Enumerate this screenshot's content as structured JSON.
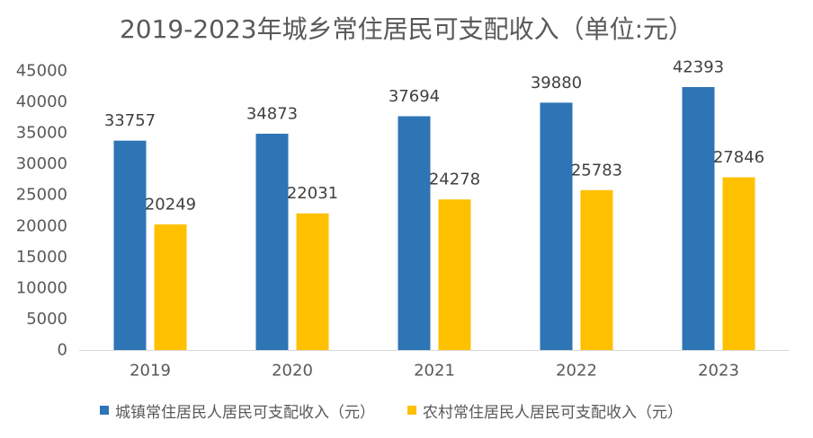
{
  "chart_data": {
    "type": "bar",
    "title": "2019-2023年城乡常住居民可支配收入（单位:元）",
    "categories": [
      "2019",
      "2020",
      "2021",
      "2022",
      "2023"
    ],
    "series": [
      {
        "name": "城镇常住居民人居民可支配收入（元）",
        "color": "#2E75B6",
        "values": [
          33757,
          34873,
          37694,
          39880,
          42393
        ]
      },
      {
        "name": "农村常住居民人居民可支配收入（元）",
        "color": "#FFC000",
        "values": [
          20249,
          22031,
          24278,
          25783,
          27846
        ]
      }
    ],
    "ylim": [
      0,
      45000
    ],
    "yticks": [
      0,
      5000,
      10000,
      15000,
      20000,
      25000,
      30000,
      35000,
      40000,
      45000
    ],
    "grid": false,
    "legend": "bottom"
  }
}
